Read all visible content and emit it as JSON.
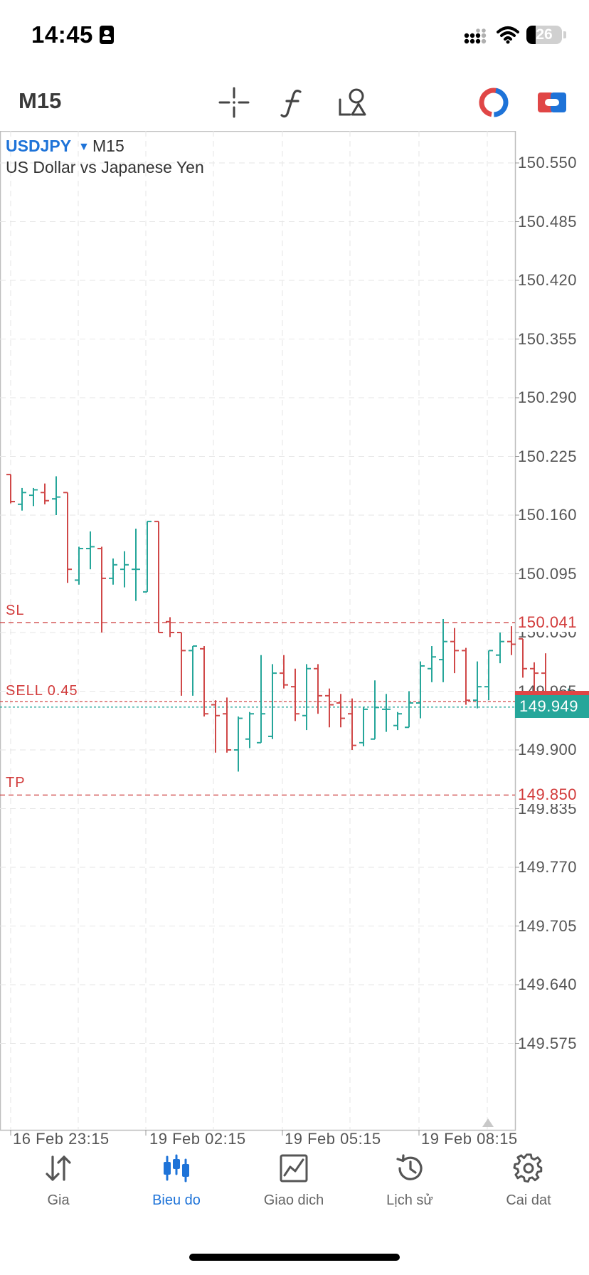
{
  "status_bar": {
    "time": "14:45",
    "battery": "26",
    "battery_percent": 26
  },
  "toolbar": {
    "timeframe": "M15"
  },
  "chart_header": {
    "symbol": "USDJPY",
    "timeframe": "M15",
    "description": "US Dollar vs Japanese Yen"
  },
  "chart_data": {
    "type": "bar",
    "price_axis": [
      "150.550",
      "150.485",
      "150.420",
      "150.355",
      "150.290",
      "150.225",
      "150.160",
      "150.095",
      "150.030",
      "149.965",
      "149.900",
      "149.835",
      "149.770",
      "149.705",
      "149.640",
      "149.575"
    ],
    "time_axis": [
      "16 Feb 23:15",
      "19 Feb 02:15",
      "19 Feb 05:15",
      "19 Feb 08:15"
    ],
    "levels": {
      "sl": {
        "label": "SL",
        "price": "150.041",
        "value": 150.041
      },
      "position": {
        "label": "SELL 0.45",
        "value": 149.952
      },
      "tp": {
        "label": "TP",
        "price": "149.850",
        "value": 149.85
      },
      "bid": {
        "price": "149.949",
        "value": 149.949
      }
    },
    "up_color": "#26a69a",
    "down_color": "#d04848",
    "bars": [
      {
        "o": 150.205,
        "h": 150.205,
        "l": 150.173,
        "c": 150.175
      },
      {
        "o": 150.172,
        "h": 150.19,
        "l": 150.165,
        "c": 150.185
      },
      {
        "o": 150.182,
        "h": 150.19,
        "l": 150.17,
        "c": 150.188
      },
      {
        "o": 150.185,
        "h": 150.195,
        "l": 150.172,
        "c": 150.176
      },
      {
        "o": 150.178,
        "h": 150.203,
        "l": 150.16,
        "c": 150.18
      },
      {
        "o": 150.185,
        "h": 150.185,
        "l": 150.085,
        "c": 150.1
      },
      {
        "o": 150.088,
        "h": 150.125,
        "l": 150.083,
        "c": 150.123
      },
      {
        "o": 150.123,
        "h": 150.142,
        "l": 150.1,
        "c": 150.125
      },
      {
        "o": 150.123,
        "h": 150.125,
        "l": 150.03,
        "c": 150.09
      },
      {
        "o": 150.09,
        "h": 150.112,
        "l": 150.083,
        "c": 150.105
      },
      {
        "o": 150.1,
        "h": 150.12,
        "l": 150.08,
        "c": 150.105
      },
      {
        "o": 150.1,
        "h": 150.145,
        "l": 150.065,
        "c": 150.1
      },
      {
        "o": 150.075,
        "h": 150.153,
        "l": 150.075,
        "c": 150.153
      },
      {
        "o": 150.153,
        "h": 150.153,
        "l": 150.03,
        "c": 150.03
      },
      {
        "o": 150.042,
        "h": 150.047,
        "l": 150.025,
        "c": 150.03
      },
      {
        "o": 150.03,
        "h": 150.03,
        "l": 149.96,
        "c": 150.01
      },
      {
        "o": 150.01,
        "h": 150.015,
        "l": 149.96,
        "c": 150.015
      },
      {
        "o": 150.012,
        "h": 150.015,
        "l": 149.937,
        "c": 149.94
      },
      {
        "o": 149.95,
        "h": 149.955,
        "l": 149.897,
        "c": 149.938
      },
      {
        "o": 149.94,
        "h": 149.958,
        "l": 149.897,
        "c": 149.9
      },
      {
        "o": 149.9,
        "h": 149.937,
        "l": 149.876,
        "c": 149.935
      },
      {
        "o": 149.912,
        "h": 149.942,
        "l": 149.902,
        "c": 149.94
      },
      {
        "o": 149.908,
        "h": 150.005,
        "l": 149.908,
        "c": 149.94
      },
      {
        "o": 149.915,
        "h": 149.995,
        "l": 149.912,
        "c": 149.985
      },
      {
        "o": 149.985,
        "h": 150.005,
        "l": 149.968,
        "c": 149.972
      },
      {
        "o": 149.97,
        "h": 149.99,
        "l": 149.932,
        "c": 149.94
      },
      {
        "o": 149.938,
        "h": 149.995,
        "l": 149.922,
        "c": 149.99
      },
      {
        "o": 149.99,
        "h": 149.995,
        "l": 149.94,
        "c": 149.96
      },
      {
        "o": 149.96,
        "h": 149.968,
        "l": 149.925,
        "c": 149.95
      },
      {
        "o": 149.952,
        "h": 149.962,
        "l": 149.925,
        "c": 149.935
      },
      {
        "o": 149.94,
        "h": 149.957,
        "l": 149.9,
        "c": 149.905
      },
      {
        "o": 149.908,
        "h": 149.947,
        "l": 149.904,
        "c": 149.945
      },
      {
        "o": 149.912,
        "h": 149.977,
        "l": 149.912,
        "c": 149.947
      },
      {
        "o": 149.945,
        "h": 149.962,
        "l": 149.92,
        "c": 149.945
      },
      {
        "o": 149.927,
        "h": 149.942,
        "l": 149.922,
        "c": 149.94
      },
      {
        "o": 149.925,
        "h": 149.965,
        "l": 149.925,
        "c": 149.952
      },
      {
        "o": 149.952,
        "h": 149.998,
        "l": 149.935,
        "c": 149.993
      },
      {
        "o": 149.99,
        "h": 150.015,
        "l": 149.975,
        "c": 150.003
      },
      {
        "o": 150.0,
        "h": 150.045,
        "l": 149.975,
        "c": 150.02
      },
      {
        "o": 150.02,
        "h": 150.035,
        "l": 149.985,
        "c": 150.01
      },
      {
        "o": 150.01,
        "h": 150.013,
        "l": 149.95,
        "c": 149.955
      },
      {
        "o": 149.955,
        "h": 149.998,
        "l": 149.946,
        "c": 149.97
      },
      {
        "o": 149.97,
        "h": 150.01,
        "l": 149.955,
        "c": 150.01
      },
      {
        "o": 150.005,
        "h": 150.03,
        "l": 149.996,
        "c": 150.02
      },
      {
        "o": 150.02,
        "h": 150.037,
        "l": 150.005,
        "c": 150.017
      },
      {
        "o": 150.023,
        "h": 150.023,
        "l": 149.98,
        "c": 149.99
      },
      {
        "o": 149.99,
        "h": 149.997,
        "l": 149.957,
        "c": 149.985
      },
      {
        "o": 149.985,
        "h": 150.007,
        "l": 149.938,
        "c": 149.95
      },
      {
        "o": 149.95,
        "h": 149.955,
        "l": 149.938,
        "c": 149.947
      },
      {
        "o": 149.948,
        "h": 149.968,
        "l": 149.938,
        "c": 149.948
      },
      {
        "o": 149.948,
        "h": 149.953,
        "l": 149.942,
        "c": 149.949
      }
    ]
  },
  "bottom_nav": {
    "items": [
      {
        "label": "Gia",
        "icon": "arrows-up-down-icon"
      },
      {
        "label": "Bieu do",
        "icon": "candlestick-icon"
      },
      {
        "label": "Giao dich",
        "icon": "line-chart-icon"
      },
      {
        "label": "Lịch sử",
        "icon": "history-icon"
      },
      {
        "label": "Cai dat",
        "icon": "gear-icon"
      }
    ],
    "active_color": "#1e73d8",
    "inactive_color": "#666666"
  }
}
